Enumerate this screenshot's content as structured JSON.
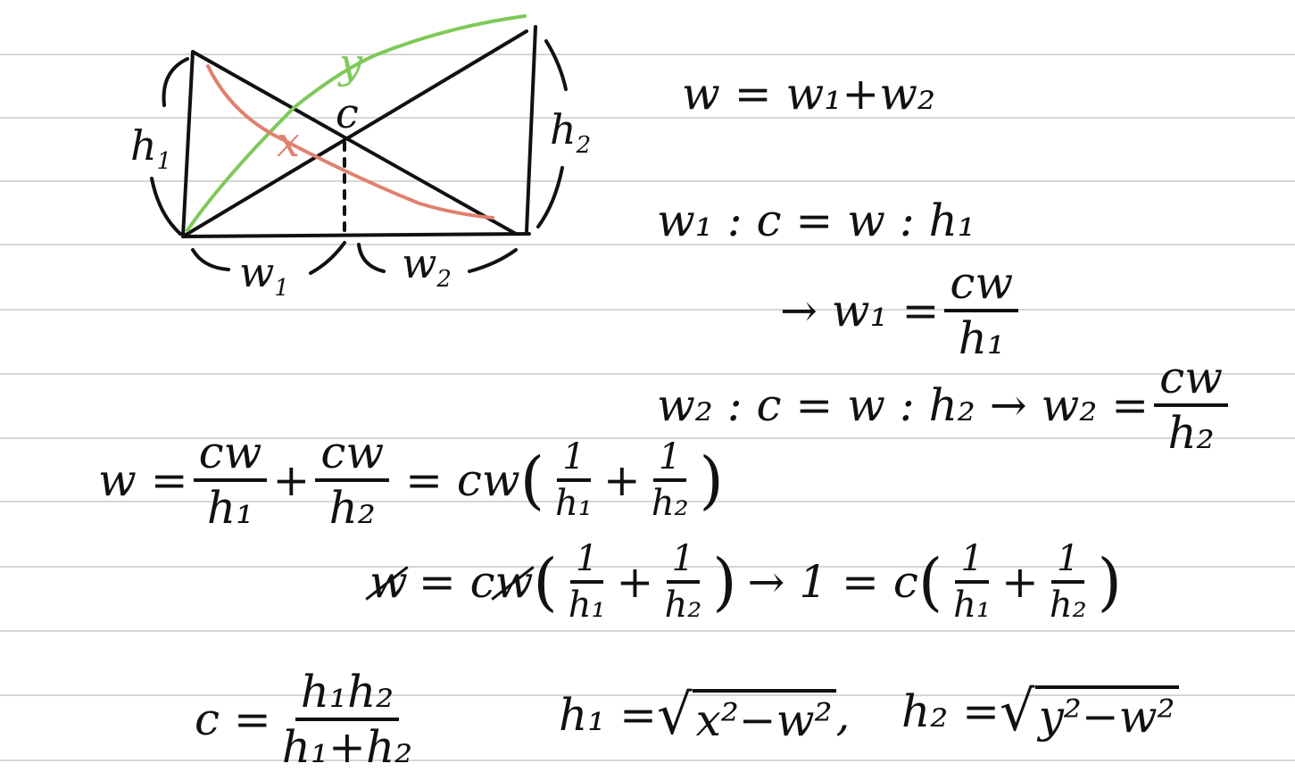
{
  "diagram": {
    "labels": {
      "h1_base": "h",
      "h1_sub": "1",
      "h2_base": "h",
      "h2_sub": "2",
      "w1_base": "w",
      "w1_sub": "1",
      "w2_base": "w",
      "w2_sub": "2",
      "c": "c",
      "x": "x",
      "y": "y"
    },
    "colors": {
      "ink": "#111111",
      "green": "#7ec95a",
      "red": "#e0806e",
      "ruled": "#d6d6d6"
    }
  },
  "equations": {
    "eq1": "w = w₁+w₂",
    "eq2": "w₁ : c = w : h₁",
    "eq3_lhs": "→ w₁ =",
    "eq3_num": "cw",
    "eq3_den": "h₁",
    "eq4_lhs": "w₂ : c = w : h₂ → w₂ =",
    "eq4_num": "cw",
    "eq4_den": "h₂",
    "eq5_lhs": "w =",
    "eq5_f1_num": "cw",
    "eq5_f1_den": "h₁",
    "eq5_plus": "+",
    "eq5_f2_num": "cw",
    "eq5_f2_den": "h₂",
    "eq5_mid": "= cw",
    "eq5_i1_num": "1",
    "eq5_i1_den": "h₁",
    "eq5_i2_num": "1",
    "eq5_i2_den": "h₂",
    "eq6_w": "w",
    "eq6_eq": "= c",
    "eq6_w2": "w",
    "eq6_i1_num": "1",
    "eq6_i1_den": "h₁",
    "eq6_i2_num": "1",
    "eq6_i2_den": "h₂",
    "eq6_arrow": "→ 1 = c",
    "eq6_j1_num": "1",
    "eq6_j1_den": "h₁",
    "eq6_j2_num": "1",
    "eq6_j2_den": "h₂",
    "eq7_lhs": "c =",
    "eq7_num": "h₁h₂",
    "eq7_den": "h₁+h₂",
    "eq8_lhs": "h₁ =",
    "eq8_rad": "x²−w²",
    "eq8_comma": ",",
    "eq9_lhs": "h₂ =",
    "eq9_rad": "y²−w²"
  }
}
